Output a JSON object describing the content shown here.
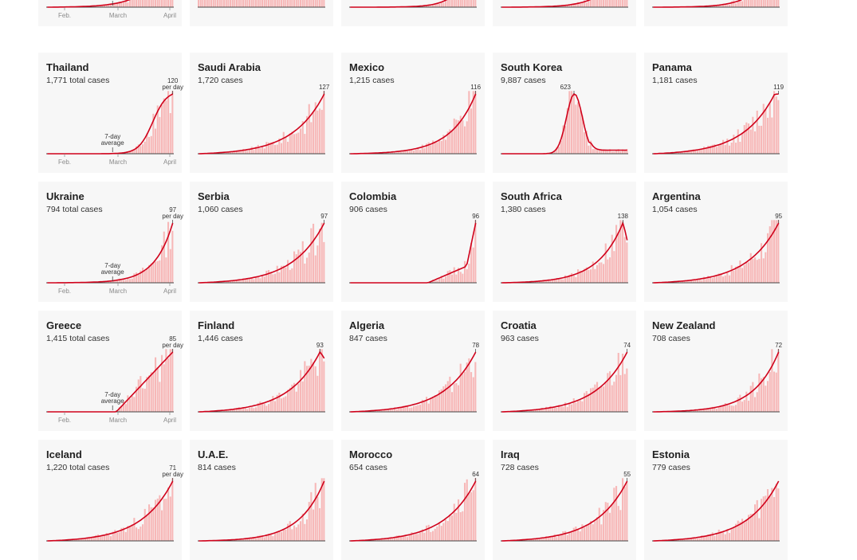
{
  "colors": {
    "bar": "#f7b8b8",
    "line": "#d0021b",
    "axis": "#444444",
    "card": "#f7f7f7"
  },
  "labels": {
    "per_day": "per day",
    "avg_line1": "7-day",
    "avg_line2": "average"
  },
  "months": [
    "Feb.",
    "March",
    "April"
  ],
  "chart_data": [
    {
      "type": "bar",
      "title": "",
      "cases_label": "",
      "peak": null,
      "peak_pos": 0.9,
      "shape": "exp",
      "rate": 6,
      "avg_label": true,
      "dates": true,
      "clipped": "top"
    },
    {
      "type": "bar",
      "title": "",
      "cases_label": "",
      "peak": null,
      "peak_pos": 0.9,
      "shape": "wave",
      "clipped": "top"
    },
    {
      "type": "bar",
      "title": "",
      "cases_label": "",
      "peak": null,
      "peak_pos": 0.9,
      "shape": "exp",
      "rate": 9,
      "clipped": "top"
    },
    {
      "type": "bar",
      "title": "",
      "cases_label": "",
      "peak": null,
      "peak_pos": 0.9,
      "shape": "exp",
      "rate": 7,
      "clipped": "top"
    },
    {
      "type": "bar",
      "title": "",
      "cases_label": "",
      "peak": null,
      "peak_pos": 0.9,
      "shape": "exp",
      "rate": 7,
      "clipped": "top"
    },
    {
      "type": "bar",
      "title": "Thailand",
      "cases_label": "1,771 total cases",
      "peak": 120,
      "peak_label": "120",
      "per_day": true,
      "peak_pos": 0.93,
      "shape": "sigmoid",
      "avg_label": true,
      "dates": true
    },
    {
      "type": "bar",
      "title": "Saudi Arabia",
      "cases_label": "1,720 cases",
      "peak": 127,
      "peak_label": "127",
      "peak_pos": 0.94,
      "shape": "exp",
      "rate": 4
    },
    {
      "type": "bar",
      "title": "Mexico",
      "cases_label": "1,215 cases",
      "peak": 116,
      "peak_label": "116",
      "peak_pos": 1.0,
      "shape": "exp",
      "rate": 5
    },
    {
      "type": "bar",
      "title": "South Korea",
      "cases_label": "9,887 cases",
      "peak": 623,
      "peak_label": "623",
      "peak_pos": 0.58,
      "shape": "hump",
      "peak_side": "left"
    },
    {
      "type": "bar",
      "title": "Panama",
      "cases_label": "1,181 cases",
      "peak": 119,
      "peak_label": "119",
      "peak_pos": 0.95,
      "shape": "exp",
      "rate": 4,
      "drop": 0.88
    },
    {
      "type": "bar",
      "title": "Ukraine",
      "cases_label": "794 total cases",
      "peak": 97,
      "peak_label": "97",
      "per_day": true,
      "peak_pos": 1.0,
      "shape": "exp",
      "rate": 7,
      "avg_label": true,
      "dates": true
    },
    {
      "type": "bar",
      "title": "Serbia",
      "cases_label": "1,060 cases",
      "peak": 97,
      "peak_label": "97",
      "peak_pos": 1.0,
      "shape": "exp",
      "rate": 4
    },
    {
      "type": "bar",
      "title": "Colombia",
      "cases_label": "906 cases",
      "peak": 96,
      "peak_label": "96",
      "peak_pos": 1.0,
      "shape": "colombia"
    },
    {
      "type": "bar",
      "title": "South Africa",
      "cases_label": "1,380 cases",
      "peak": 138,
      "peak_label": "138",
      "peak_pos": 0.88,
      "shape": "exp",
      "rate": 5,
      "drop": 0.6
    },
    {
      "type": "bar",
      "title": "Argentina",
      "cases_label": "1,054 cases",
      "peak": 95,
      "peak_label": "95",
      "peak_pos": 0.97,
      "shape": "exp",
      "rate": 4
    },
    {
      "type": "bar",
      "title": "Greece",
      "cases_label": "1,415 total cases",
      "peak": 85,
      "peak_label": "85",
      "per_day": true,
      "peak_pos": 1.0,
      "shape": "linear",
      "avg_label": true,
      "dates": true
    },
    {
      "type": "bar",
      "title": "Finland",
      "cases_label": "1,446 cases",
      "peak": 93,
      "peak_label": "93",
      "peak_pos": 0.93,
      "shape": "exp",
      "rate": 4,
      "drop": 0.78
    },
    {
      "type": "bar",
      "title": "Algeria",
      "cases_label": "847 cases",
      "peak": 78,
      "peak_label": "78",
      "peak_pos": 1.0,
      "shape": "exp",
      "rate": 4
    },
    {
      "type": "bar",
      "title": "Croatia",
      "cases_label": "963 cases",
      "peak": 74,
      "peak_label": "74",
      "peak_pos": 1.0,
      "shape": "exp",
      "rate": 4
    },
    {
      "type": "bar",
      "title": "New Zealand",
      "cases_label": "708 cases",
      "peak": 72,
      "peak_label": "72",
      "peak_pos": 1.0,
      "shape": "exp",
      "rate": 5
    },
    {
      "type": "bar",
      "title": "Iceland",
      "cases_label": "1,220 total cases",
      "peak": 71,
      "peak_label": "71",
      "per_day": true,
      "peak_pos": 0.9,
      "shape": "exp",
      "rate": 4
    },
    {
      "type": "bar",
      "title": "U.A.E.",
      "cases_label": "814 cases",
      "peak": null,
      "peak_pos": 1.0,
      "shape": "exp",
      "rate": 5
    },
    {
      "type": "bar",
      "title": "Morocco",
      "cases_label": "654 cases",
      "peak": 64,
      "peak_label": "64",
      "peak_pos": 0.9,
      "shape": "exp",
      "rate": 4
    },
    {
      "type": "bar",
      "title": "Iraq",
      "cases_label": "728 cases",
      "peak": 55,
      "peak_label": "55",
      "peak_pos": 0.9,
      "shape": "exp",
      "rate": 4
    },
    {
      "type": "bar",
      "title": "Estonia",
      "cases_label": "779 cases",
      "peak": null,
      "peak_pos": 0.9,
      "shape": "exp",
      "rate": 4
    }
  ]
}
